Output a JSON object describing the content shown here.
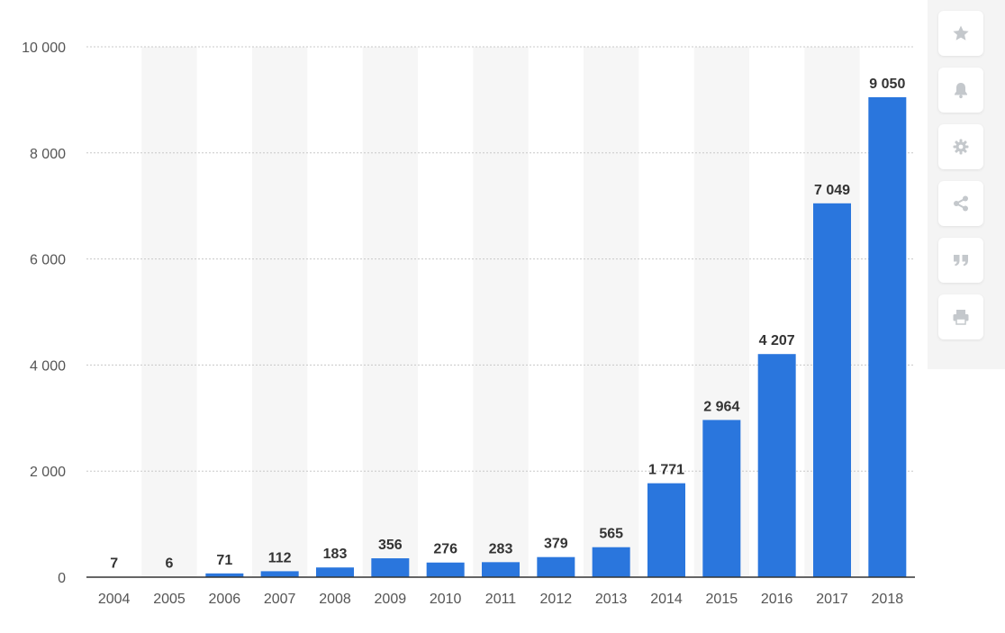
{
  "chart_data": {
    "type": "bar",
    "title": "",
    "xlabel": "",
    "ylabel": "",
    "categories": [
      "2004",
      "2005",
      "2006",
      "2007",
      "2008",
      "2009",
      "2010",
      "2011",
      "2012",
      "2013",
      "2014",
      "2015",
      "2016",
      "2017",
      "2018"
    ],
    "values": [
      7,
      6,
      71,
      112,
      183,
      356,
      276,
      283,
      379,
      565,
      1771,
      2964,
      4207,
      7049,
      9050
    ],
    "value_labels": [
      "7",
      "6",
      "71",
      "112",
      "183",
      "356",
      "276",
      "283",
      "379",
      "565",
      "1 771",
      "2 964",
      "4 207",
      "7 049",
      "9 050"
    ],
    "ylim": [
      0,
      10000
    ],
    "yticks": [
      0,
      2000,
      4000,
      6000,
      8000,
      10000
    ],
    "ytick_labels": [
      "0",
      "2 000",
      "4 000",
      "6 000",
      "8 000",
      "10 000"
    ],
    "grid": true,
    "bar_color": "#2a76dd",
    "stripe_color": "#f6f6f6"
  },
  "toolbar": {
    "buttons": [
      {
        "name": "favorite-button",
        "icon": "star-icon"
      },
      {
        "name": "notification-button",
        "icon": "bell-icon"
      },
      {
        "name": "settings-button",
        "icon": "gear-icon"
      },
      {
        "name": "share-button",
        "icon": "share-icon"
      },
      {
        "name": "cite-button",
        "icon": "quote-icon"
      },
      {
        "name": "print-button",
        "icon": "print-icon"
      }
    ],
    "icon_color": "#c4c8cc"
  }
}
